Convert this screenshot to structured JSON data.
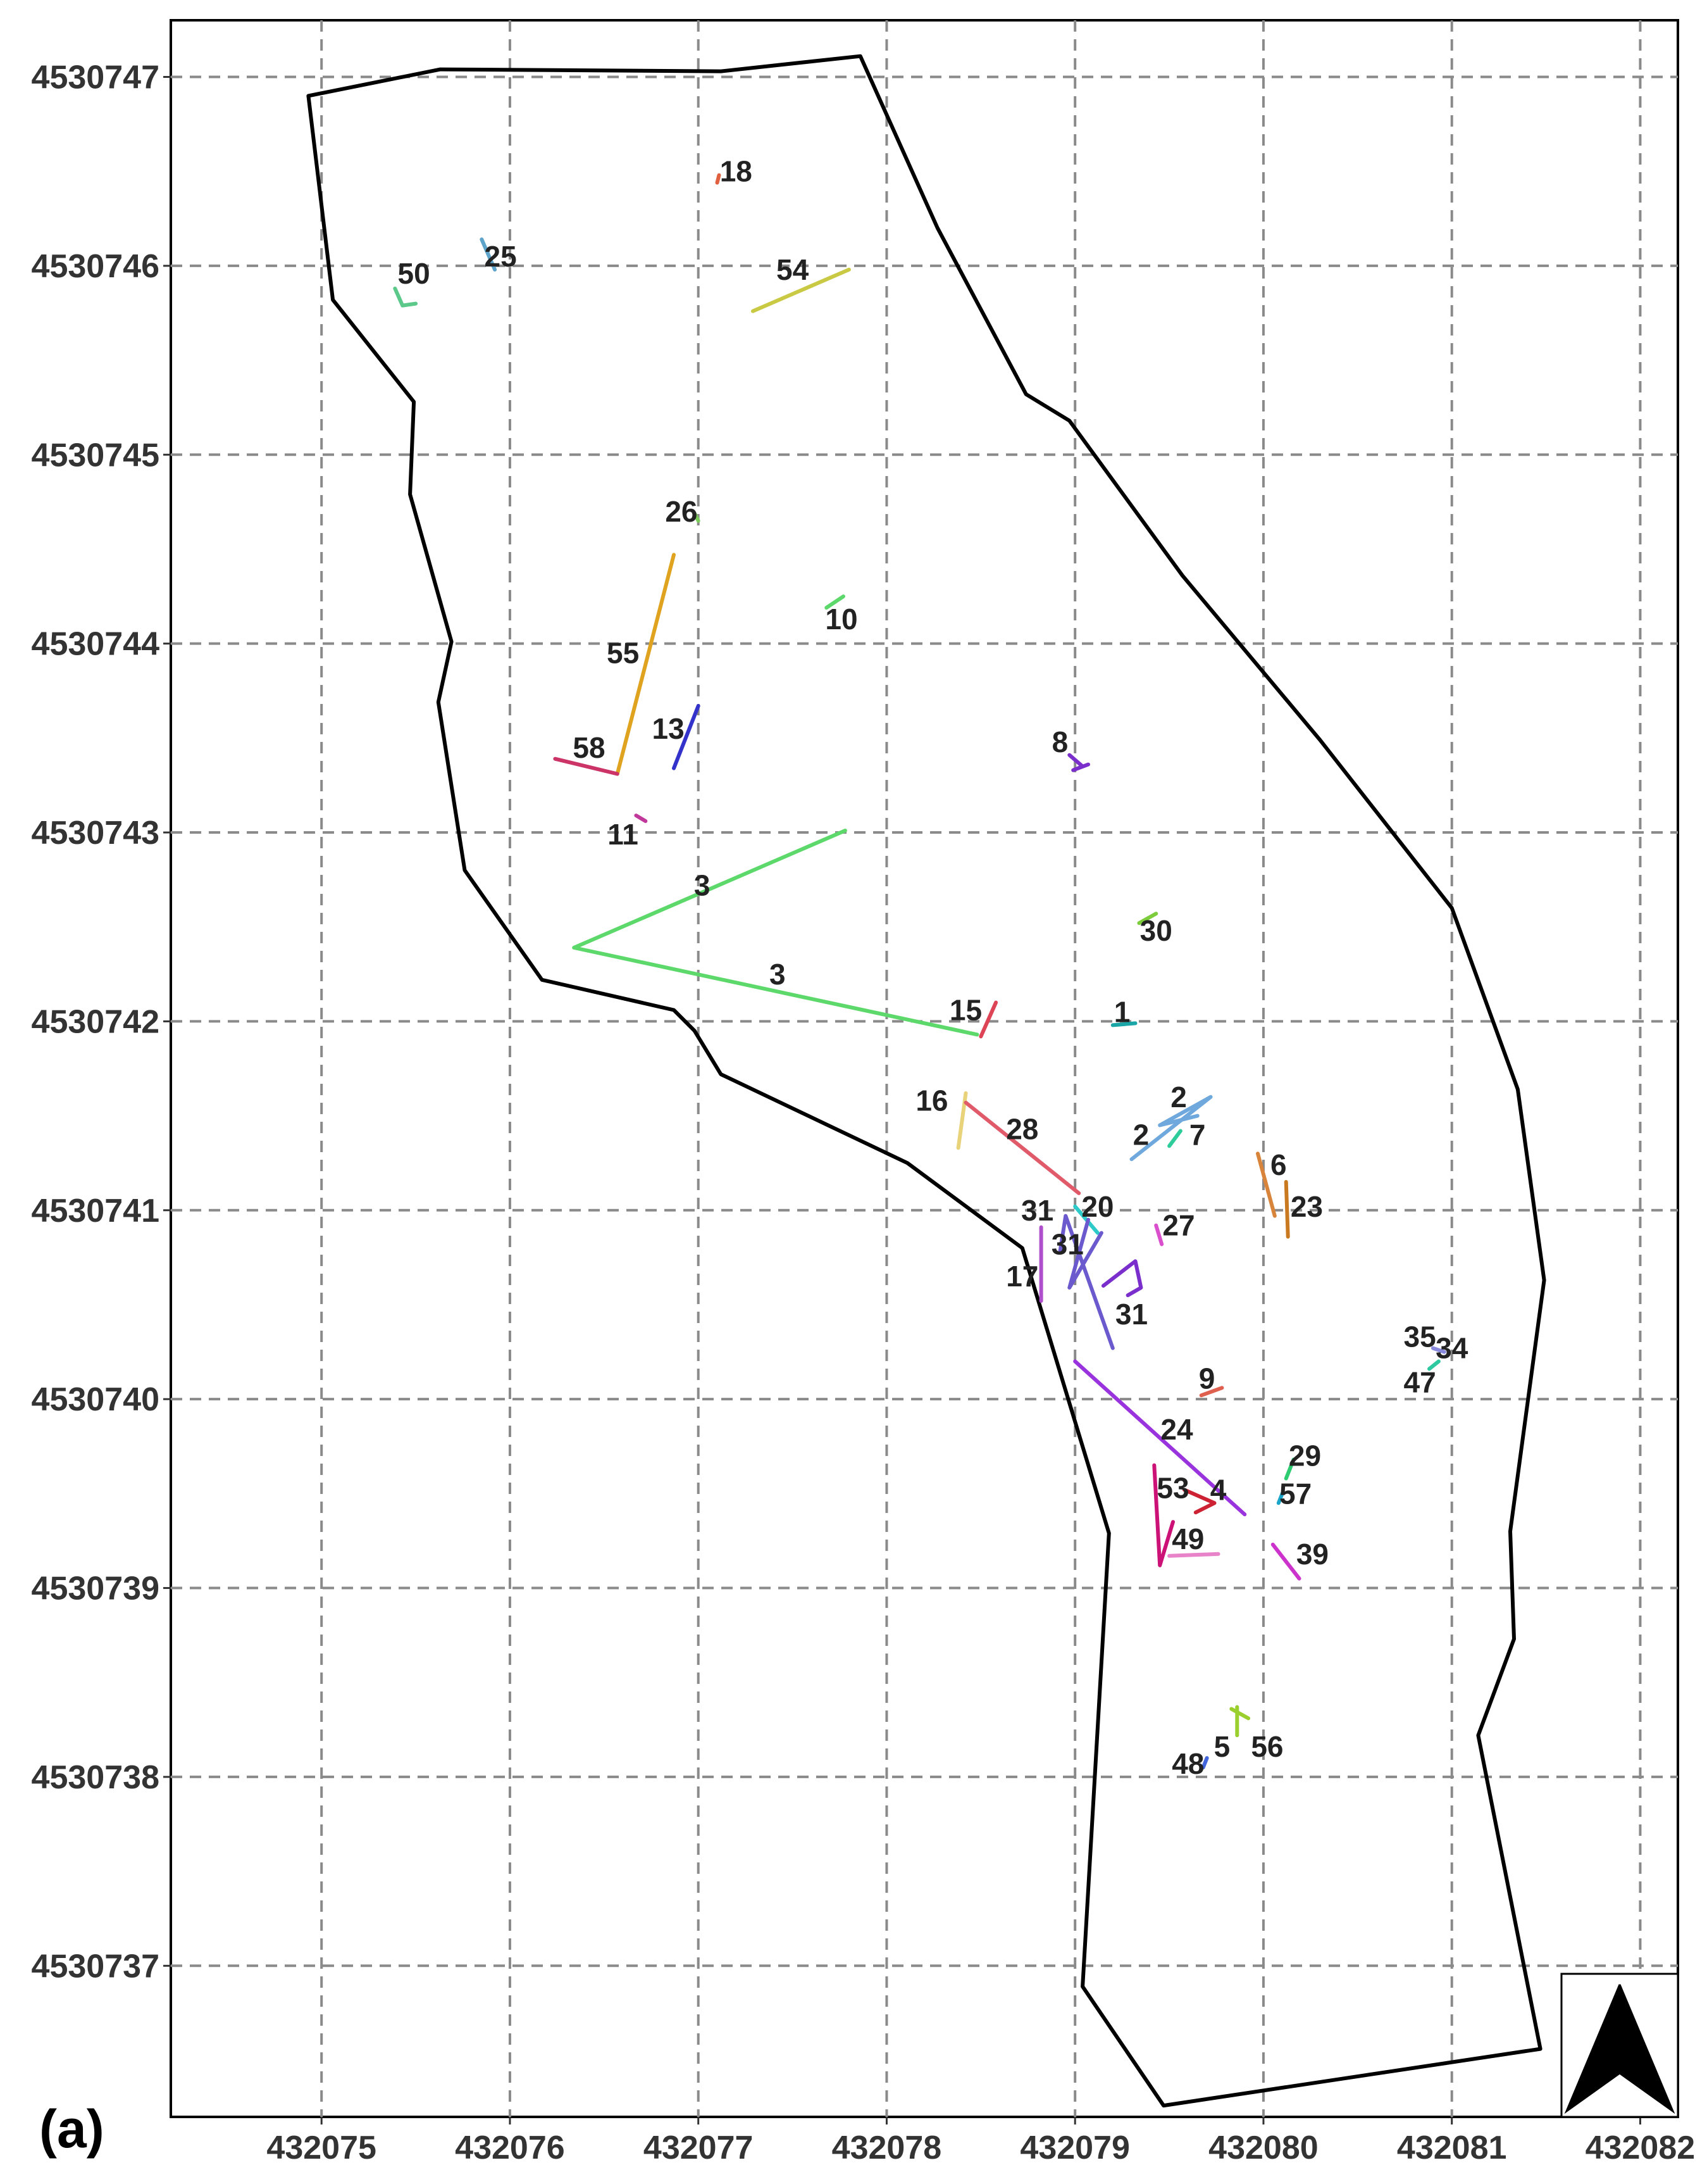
{
  "figure": {
    "panel_label": "(a)"
  },
  "chart_data": {
    "type": "map",
    "title": "",
    "xlabel": "",
    "ylabel": "",
    "xlim": [
      432074.2,
      432082.2
    ],
    "ylim": [
      4530736.2,
      4530747.3
    ],
    "grid": true,
    "x_ticks": [
      432075,
      432076,
      432077,
      432078,
      432079,
      432080,
      432081,
      432082
    ],
    "y_ticks": [
      4530737,
      4530738,
      4530739,
      4530740,
      4530741,
      4530742,
      4530743,
      4530744,
      4530745,
      4530746,
      4530747
    ],
    "north_arrow": "bottom-right",
    "boundary": [
      [
        432074.93,
        4530746.9
      ],
      [
        432075.63,
        4530747.04
      ],
      [
        432077.12,
        4530747.03
      ],
      [
        432077.86,
        4530747.11
      ],
      [
        432078.27,
        4530746.2
      ],
      [
        432078.74,
        4530745.32
      ],
      [
        432078.97,
        4530745.18
      ],
      [
        432079.57,
        4530744.36
      ],
      [
        432080.3,
        4530743.49
      ],
      [
        432081.0,
        4530742.6
      ],
      [
        432081.35,
        4530741.64
      ],
      [
        432081.49,
        4530740.63
      ],
      [
        432081.31,
        4530739.3
      ],
      [
        432081.33,
        4530738.73
      ],
      [
        432081.14,
        4530738.22
      ],
      [
        432081.47,
        4530736.56
      ],
      [
        432079.47,
        4530736.26
      ],
      [
        432079.04,
        4530736.89
      ],
      [
        432079.18,
        4530739.29
      ],
      [
        432078.72,
        4530740.8
      ],
      [
        432078.11,
        4530741.25
      ],
      [
        432077.12,
        4530741.72
      ],
      [
        432076.98,
        4530741.95
      ],
      [
        432076.87,
        4530742.06
      ],
      [
        432076.17,
        4530742.22
      ],
      [
        432075.76,
        4530742.8
      ],
      [
        432075.62,
        4530743.69
      ],
      [
        432075.69,
        4530744.01
      ],
      [
        432075.47,
        4530744.79
      ],
      [
        432075.49,
        4530745.28
      ],
      [
        432075.06,
        4530745.82
      ],
      [
        432074.93,
        4530746.9
      ]
    ],
    "tracks": [
      {
        "label": "1",
        "color": "#1aa6a6",
        "points": [
          [
            432079.2,
            4530741.98
          ],
          [
            432079.32,
            4530741.99
          ]
        ],
        "label_at": [
          432079.25,
          4530742.05
        ]
      },
      {
        "label": "2",
        "color": "#6fa8dc",
        "points": [
          [
            432079.3,
            4530741.27
          ],
          [
            432079.72,
            4530741.6
          ],
          [
            432079.45,
            4530741.45
          ],
          [
            432079.65,
            4530741.5
          ]
        ],
        "label_at": [
          432079.35,
          4530741.4
        ]
      },
      {
        "label": "2",
        "color": "#6fa8dc",
        "points": [],
        "label_at": [
          432079.55,
          4530741.6
        ]
      },
      {
        "label": "3",
        "color": "#5cd96a",
        "points": [
          [
            432077.78,
            4530743.01
          ],
          [
            432076.34,
            4530742.39
          ],
          [
            432078.48,
            4530741.93
          ]
        ],
        "label_at": [
          432077.02,
          4530742.72
        ]
      },
      {
        "label": "3",
        "color": "#5cd96a",
        "points": [],
        "label_at": [
          432077.42,
          4530742.25
        ]
      },
      {
        "label": "4",
        "color": "#cc2233",
        "points": [
          [
            432079.58,
            4530739.52
          ],
          [
            432079.74,
            4530739.45
          ],
          [
            432079.64,
            4530739.4
          ]
        ],
        "label_at": [
          432079.76,
          4530739.52
        ]
      },
      {
        "label": "5",
        "color": "#9bcf2e",
        "points": [
          [
            432079.86,
            4530738.22
          ],
          [
            432079.86,
            4530738.37
          ]
        ],
        "label_at": [
          432079.78,
          4530738.16
        ]
      },
      {
        "label": "6",
        "color": "#d9843b",
        "points": [
          [
            432079.97,
            4530741.3
          ],
          [
            432080.06,
            4530740.97
          ]
        ],
        "label_at": [
          432080.08,
          4530741.24
        ]
      },
      {
        "label": "7",
        "color": "#2ecc9a",
        "points": [
          [
            432079.5,
            4530741.34
          ],
          [
            432079.56,
            4530741.42
          ]
        ],
        "label_at": [
          432079.65,
          4530741.4
        ]
      },
      {
        "label": "8",
        "color": "#7a2fcc",
        "points": [
          [
            432078.97,
            4530743.41
          ],
          [
            432079.04,
            4530743.35
          ],
          [
            432078.99,
            4530743.33
          ],
          [
            432079.07,
            4530743.36
          ]
        ],
        "label_at": [
          432078.92,
          4530743.48
        ]
      },
      {
        "label": "9",
        "color": "#e06050",
        "points": [
          [
            432079.67,
            4530740.02
          ],
          [
            432079.78,
            4530740.06
          ]
        ],
        "label_at": [
          432079.7,
          4530740.11
        ]
      },
      {
        "label": "10",
        "color": "#5cd96a",
        "points": [
          [
            432077.68,
            4530744.19
          ],
          [
            432077.77,
            4530744.25
          ]
        ],
        "label_at": [
          432077.76,
          4530744.13
        ]
      },
      {
        "label": "11",
        "color": "#c0399a",
        "points": [
          [
            432076.67,
            4530743.09
          ],
          [
            432076.72,
            4530743.06
          ]
        ],
        "label_at": [
          432076.6,
          4530742.99
        ]
      },
      {
        "label": "13",
        "color": "#3333cc",
        "points": [
          [
            432076.87,
            4530743.34
          ],
          [
            432077.0,
            4530743.67
          ]
        ],
        "label_at": [
          432076.84,
          4530743.55
        ]
      },
      {
        "label": "15",
        "color": "#dd4455",
        "points": [
          [
            432078.5,
            4530741.92
          ],
          [
            432078.58,
            4530742.1
          ]
        ],
        "label_at": [
          432078.42,
          4530742.06
        ]
      },
      {
        "label": "16",
        "color": "#e8d27a",
        "points": [
          [
            432078.42,
            4530741.62
          ],
          [
            432078.38,
            4530741.33
          ]
        ],
        "label_at": [
          432078.24,
          4530741.58
        ]
      },
      {
        "label": "17",
        "color": "#b04fcc",
        "points": [
          [
            432078.82,
            4530740.91
          ],
          [
            432078.82,
            4530740.52
          ]
        ],
        "label_at": [
          432078.72,
          4530740.65
        ]
      },
      {
        "label": "18",
        "color": "#e06040",
        "points": [
          [
            432077.11,
            4530746.48
          ],
          [
            432077.1,
            4530746.44
          ]
        ],
        "label_at": [
          432077.2,
          4530746.5
        ]
      },
      {
        "label": "20",
        "color": "#2ec9c9",
        "points": [
          [
            432079.0,
            4530741.02
          ],
          [
            432079.12,
            4530740.88
          ]
        ],
        "label_at": [
          432079.12,
          4530741.02
        ]
      },
      {
        "label": "23",
        "color": "#c9791f",
        "points": [
          [
            432080.12,
            4530741.15
          ],
          [
            432080.13,
            4530740.86
          ]
        ],
        "label_at": [
          432080.23,
          4530741.02
        ]
      },
      {
        "label": "24",
        "color": "#9933dd",
        "points": [
          [
            432079.0,
            4530740.2
          ],
          [
            432079.9,
            4530739.39
          ]
        ],
        "label_at": [
          432079.54,
          4530739.84
        ]
      },
      {
        "label": "25",
        "color": "#5ea3c9",
        "points": [
          [
            432075.85,
            4530746.14
          ],
          [
            432075.92,
            4530745.98
          ]
        ],
        "label_at": [
          432075.95,
          4530746.05
        ]
      },
      {
        "label": "26",
        "color": "#7ccc5c",
        "points": [
          [
            432076.98,
            4530744.69
          ],
          [
            432077.0,
            4530744.65
          ]
        ],
        "label_at": [
          432076.91,
          4530744.7
        ]
      },
      {
        "label": "27",
        "color": "#d94fcc",
        "points": [
          [
            432079.43,
            4530740.92
          ],
          [
            432079.46,
            4530740.82
          ]
        ],
        "label_at": [
          432079.55,
          4530740.92
        ]
      },
      {
        "label": "28",
        "color": "#e05a6a",
        "points": [
          [
            432078.42,
            4530741.57
          ],
          [
            432079.02,
            4530741.09
          ]
        ],
        "label_at": [
          432078.72,
          4530741.43
        ]
      },
      {
        "label": "29",
        "color": "#2ecc71",
        "points": [
          [
            432080.12,
            4530739.58
          ],
          [
            432080.16,
            4530739.68
          ]
        ],
        "label_at": [
          432080.22,
          4530739.7
        ]
      },
      {
        "label": "30",
        "color": "#7ccc3c",
        "points": [
          [
            432079.34,
            4530742.52
          ],
          [
            432079.43,
            4530742.57
          ]
        ],
        "label_at": [
          432079.43,
          4530742.48
        ]
      },
      {
        "label": "31",
        "color": "#6a5acd",
        "points": [
          [
            432079.2,
            4530740.27
          ],
          [
            432078.95,
            4530740.97
          ],
          [
            432078.92,
            4530740.78
          ]
        ],
        "label_at": [
          432078.8,
          4530741.0
        ]
      },
      {
        "label": "31",
        "color": "#6a5acd",
        "points": [
          [
            432079.14,
            4530740.88
          ],
          [
            432078.97,
            4530740.59
          ],
          [
            432079.07,
            4530740.95
          ]
        ],
        "label_at": [
          432078.96,
          4530740.82
        ]
      },
      {
        "label": "31",
        "color": "#7a2fcc",
        "points": [
          [
            432079.15,
            4530740.6
          ],
          [
            432079.32,
            4530740.73
          ],
          [
            432079.35,
            4530740.59
          ],
          [
            432079.28,
            4530740.55
          ]
        ],
        "label_at": [
          432079.3,
          4530740.45
        ]
      },
      {
        "label": "34",
        "color": "#8888dd",
        "points": [
          [
            432080.9,
            4530740.27
          ],
          [
            432080.96,
            4530740.25
          ]
        ],
        "label_at": [
          432081.0,
          4530740.27
        ]
      },
      {
        "label": "35",
        "color": "#aaaaaa",
        "points": [],
        "label_at": [
          432080.83,
          4530740.33
        ]
      },
      {
        "label": "39",
        "color": "#cc33cc",
        "points": [
          [
            432080.05,
            4530739.23
          ],
          [
            432080.19,
            4530739.05
          ]
        ],
        "label_at": [
          432080.26,
          4530739.18
        ]
      },
      {
        "label": "47",
        "color": "#2ec9a0",
        "points": [
          [
            432080.88,
            4530740.16
          ],
          [
            432080.93,
            4530740.2
          ]
        ],
        "label_at": [
          432080.83,
          4530740.09
        ]
      },
      {
        "label": "48",
        "color": "#4466dd",
        "points": [
          [
            432079.68,
            4530738.05
          ],
          [
            432079.7,
            4530738.1
          ]
        ],
        "label_at": [
          432079.6,
          4530738.07
        ]
      },
      {
        "label": "49",
        "color": "#e882c9",
        "points": [
          [
            432079.5,
            4530739.17
          ],
          [
            432079.76,
            4530739.18
          ]
        ],
        "label_at": [
          432079.6,
          4530739.26
        ]
      },
      {
        "label": "50",
        "color": "#5cc98a",
        "points": [
          [
            432075.39,
            4530745.88
          ],
          [
            432075.43,
            4530745.79
          ],
          [
            432075.5,
            4530745.8
          ]
        ],
        "label_at": [
          432075.49,
          4530745.96
        ]
      },
      {
        "label": "53",
        "color": "#cc1177",
        "points": [
          [
            432079.42,
            4530739.65
          ],
          [
            432079.45,
            4530739.12
          ],
          [
            432079.52,
            4530739.35
          ]
        ],
        "label_at": [
          432079.52,
          4530739.53
        ]
      },
      {
        "label": "54",
        "color": "#c9c944",
        "points": [
          [
            432077.29,
            4530745.76
          ],
          [
            432077.8,
            4530745.98
          ]
        ],
        "label_at": [
          432077.5,
          4530745.98
        ]
      },
      {
        "label": "55",
        "color": "#e0a31f",
        "points": [
          [
            432076.57,
            4530743.31
          ],
          [
            432076.87,
            4530744.47
          ]
        ],
        "label_at": [
          432076.6,
          4530743.95
        ]
      },
      {
        "label": "56",
        "color": "#9bcf2e",
        "points": [
          [
            432079.92,
            4530738.31
          ],
          [
            432079.83,
            4530738.36
          ]
        ],
        "label_at": [
          432080.02,
          4530738.16
        ]
      },
      {
        "label": "57",
        "color": "#1aa6c9",
        "points": [
          [
            432080.08,
            4530739.45
          ],
          [
            432080.1,
            4530739.5
          ]
        ],
        "label_at": [
          432080.17,
          4530739.5
        ]
      },
      {
        "label": "58",
        "color": "#cc3366",
        "points": [
          [
            432076.24,
            4530743.39
          ],
          [
            432076.57,
            4530743.31
          ]
        ],
        "label_at": [
          432076.42,
          4530743.45
        ]
      }
    ]
  }
}
